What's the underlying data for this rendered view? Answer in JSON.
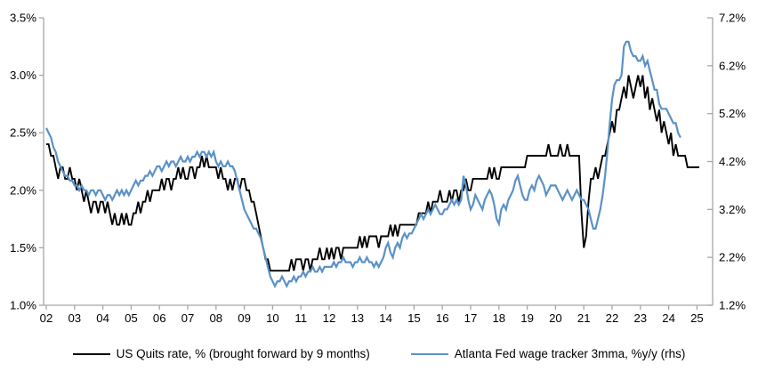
{
  "chart_data": {
    "type": "line",
    "title": "",
    "grid": false,
    "background": "#ffffff",
    "axis_color": "#a6a6a6",
    "text_color": "#000000",
    "legend_position": "bottom",
    "x_axis": {
      "labels": [
        "02",
        "03",
        "04",
        "05",
        "06",
        "07",
        "08",
        "09",
        "10",
        "11",
        "12",
        "13",
        "14",
        "15",
        "16",
        "17",
        "18",
        "19",
        "20",
        "21",
        "22",
        "23",
        "24",
        "25"
      ],
      "start_year": 2002,
      "end_year": 2025
    },
    "y_axis_left": {
      "labels": [
        "3.5%",
        "3.0%",
        "2.5%",
        "2.0%",
        "1.5%",
        "1.0%"
      ],
      "min": 1.0,
      "max": 3.5,
      "step": 0.5
    },
    "y_axis_right": {
      "labels": [
        "7.2%",
        "6.2%",
        "5.2%",
        "4.2%",
        "3.2%",
        "2.2%",
        "1.2%"
      ],
      "min": 1.2,
      "max": 7.2,
      "step": 1.0
    },
    "series": [
      {
        "name": "US Quits rate, % (brought forward by 9 months)",
        "color": "#000000",
        "width": 1.9,
        "axis": "left",
        "start_year": 2002,
        "frequency": "monthly",
        "values": [
          2.4,
          2.4,
          2.3,
          2.3,
          2.2,
          2.1,
          2.2,
          2.2,
          2.1,
          2.1,
          2.2,
          2.1,
          2.1,
          2.0,
          2.1,
          2.0,
          1.9,
          2.0,
          1.9,
          1.8,
          1.9,
          1.9,
          1.8,
          1.9,
          1.9,
          1.8,
          1.9,
          1.8,
          1.7,
          1.8,
          1.7,
          1.7,
          1.8,
          1.7,
          1.8,
          1.7,
          1.7,
          1.8,
          1.8,
          1.9,
          1.8,
          1.9,
          1.9,
          2.0,
          1.9,
          2.0,
          2.0,
          2.0,
          2.0,
          2.1,
          2.0,
          2.1,
          2.1,
          2.0,
          2.1,
          2.1,
          2.2,
          2.1,
          2.2,
          2.1,
          2.1,
          2.2,
          2.2,
          2.1,
          2.2,
          2.2,
          2.3,
          2.2,
          2.3,
          2.2,
          2.2,
          2.2,
          2.2,
          2.1,
          2.2,
          2.1,
          2.1,
          2.0,
          2.1,
          2.0,
          2.1,
          2.1,
          2.0,
          2.1,
          2.1,
          2.0,
          2.0,
          1.9,
          1.9,
          1.8,
          1.7,
          1.6,
          1.5,
          1.4,
          1.4,
          1.3,
          1.3,
          1.3,
          1.3,
          1.3,
          1.3,
          1.3,
          1.3,
          1.3,
          1.4,
          1.3,
          1.4,
          1.4,
          1.4,
          1.3,
          1.4,
          1.4,
          1.3,
          1.4,
          1.4,
          1.4,
          1.5,
          1.4,
          1.4,
          1.5,
          1.4,
          1.5,
          1.4,
          1.5,
          1.5,
          1.4,
          1.5,
          1.5,
          1.5,
          1.5,
          1.5,
          1.5,
          1.5,
          1.6,
          1.5,
          1.6,
          1.5,
          1.6,
          1.6,
          1.6,
          1.6,
          1.5,
          1.6,
          1.6,
          1.6,
          1.6,
          1.7,
          1.6,
          1.7,
          1.6,
          1.7,
          1.7,
          1.7,
          1.7,
          1.7,
          1.7,
          1.7,
          1.7,
          1.8,
          1.8,
          1.8,
          1.8,
          1.9,
          1.8,
          1.9,
          1.9,
          1.9,
          2.0,
          1.9,
          1.9,
          1.9,
          2.0,
          1.9,
          2.0,
          2.0,
          1.9,
          2.0,
          2.0,
          2.1,
          2.0,
          2.0,
          2.1,
          2.1,
          2.1,
          2.1,
          2.1,
          2.1,
          2.1,
          2.2,
          2.1,
          2.2,
          2.1,
          2.1,
          2.2,
          2.2,
          2.2,
          2.2,
          2.2,
          2.2,
          2.2,
          2.2,
          2.2,
          2.2,
          2.2,
          2.3,
          2.3,
          2.3,
          2.3,
          2.3,
          2.3,
          2.3,
          2.3,
          2.3,
          2.4,
          2.3,
          2.3,
          2.3,
          2.3,
          2.4,
          2.3,
          2.3,
          2.4,
          2.3,
          2.3,
          2.3,
          2.3,
          2.3,
          1.8,
          1.5,
          1.6,
          1.9,
          2.1,
          2.1,
          2.2,
          2.1,
          2.2,
          2.3,
          2.3,
          2.4,
          2.5,
          2.6,
          2.5,
          2.7,
          2.7,
          2.8,
          2.9,
          2.8,
          3.0,
          2.9,
          2.8,
          2.9,
          3.0,
          2.9,
          3.0,
          2.8,
          2.9,
          2.7,
          2.8,
          2.7,
          2.6,
          2.7,
          2.5,
          2.6,
          2.5,
          2.4,
          2.5,
          2.3,
          2.4,
          2.3,
          2.3,
          2.3,
          2.3,
          2.2,
          2.2,
          2.2,
          2.2,
          2.2,
          2.2
        ]
      },
      {
        "name": "Atlanta Fed wage tracker 3mma, %y/y (rhs)",
        "color": "#5b91c6",
        "width": 2.2,
        "axis": "right",
        "start_year": 2002,
        "frequency": "monthly",
        "values": [
          4.9,
          4.8,
          4.7,
          4.5,
          4.4,
          4.2,
          4.1,
          4.0,
          3.9,
          3.9,
          3.8,
          3.8,
          3.7,
          3.7,
          3.6,
          3.7,
          3.6,
          3.6,
          3.5,
          3.6,
          3.6,
          3.5,
          3.6,
          3.6,
          3.5,
          3.4,
          3.5,
          3.5,
          3.4,
          3.5,
          3.6,
          3.5,
          3.6,
          3.5,
          3.6,
          3.5,
          3.6,
          3.7,
          3.8,
          3.7,
          3.8,
          3.8,
          3.9,
          3.9,
          4.0,
          3.9,
          4.0,
          4.1,
          4.1,
          4.0,
          4.1,
          4.2,
          4.1,
          4.2,
          4.2,
          4.1,
          4.2,
          4.3,
          4.2,
          4.2,
          4.3,
          4.2,
          4.3,
          4.3,
          4.4,
          4.3,
          4.4,
          4.4,
          4.3,
          4.4,
          4.3,
          4.4,
          4.2,
          4.1,
          4.2,
          4.1,
          4.1,
          4.2,
          4.1,
          4.1,
          4.0,
          3.8,
          3.6,
          3.4,
          3.2,
          3.1,
          3.0,
          2.9,
          2.8,
          2.8,
          2.7,
          2.6,
          2.4,
          2.2,
          2.0,
          1.8,
          1.7,
          1.6,
          1.7,
          1.7,
          1.8,
          1.7,
          1.6,
          1.7,
          1.7,
          1.8,
          1.7,
          1.8,
          1.8,
          1.9,
          1.8,
          1.9,
          1.9,
          2.0,
          1.9,
          1.9,
          2.0,
          1.9,
          2.0,
          2.0,
          2.0,
          2.0,
          2.1,
          2.0,
          2.1,
          2.1,
          2.2,
          2.1,
          2.1,
          2.1,
          2.0,
          2.1,
          2.1,
          2.2,
          2.1,
          2.1,
          2.2,
          2.1,
          2.1,
          2.0,
          2.1,
          2.0,
          2.1,
          2.2,
          2.4,
          2.5,
          2.3,
          2.2,
          2.4,
          2.5,
          2.4,
          2.6,
          2.7,
          2.6,
          2.7,
          2.7,
          2.8,
          2.9,
          3.0,
          3.1,
          3.0,
          3.1,
          3.2,
          3.1,
          3.2,
          3.3,
          3.2,
          3.1,
          3.1,
          3.2,
          3.2,
          3.3,
          3.4,
          3.3,
          3.4,
          3.3,
          3.4,
          3.9,
          3.7,
          3.4,
          3.2,
          3.3,
          3.5,
          3.4,
          3.3,
          3.2,
          3.4,
          3.5,
          3.6,
          3.5,
          3.3,
          3.0,
          2.9,
          3.2,
          3.3,
          3.2,
          3.4,
          3.5,
          3.6,
          3.8,
          3.9,
          3.7,
          3.5,
          3.4,
          3.4,
          3.6,
          3.7,
          3.6,
          3.8,
          3.9,
          3.8,
          3.7,
          3.5,
          3.6,
          3.7,
          3.7,
          3.7,
          3.6,
          3.5,
          3.4,
          3.5,
          3.6,
          3.5,
          3.4,
          3.5,
          3.6,
          3.5,
          3.4,
          3.4,
          3.3,
          3.2,
          3.0,
          2.8,
          2.8,
          3.0,
          3.2,
          3.5,
          3.9,
          4.4,
          5.0,
          5.5,
          5.8,
          5.9,
          5.9,
          6.0,
          6.6,
          6.7,
          6.7,
          6.5,
          6.4,
          6.4,
          6.3,
          6.3,
          6.4,
          6.2,
          6.3,
          6.1,
          5.9,
          5.7,
          5.7,
          5.4,
          5.3,
          5.3,
          5.3,
          5.2,
          5.1,
          5.0,
          5.0,
          4.8,
          4.7
        ]
      }
    ]
  }
}
